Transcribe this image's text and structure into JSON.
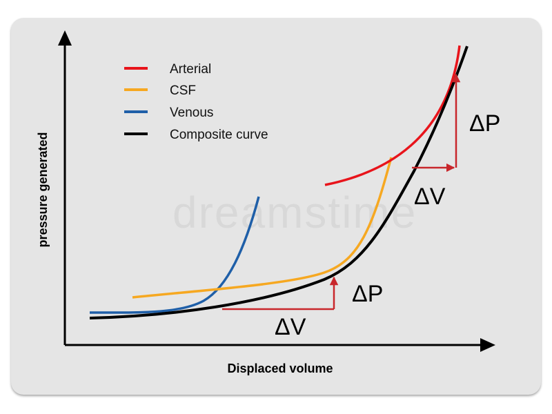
{
  "diagram": {
    "ylabel": "pressure generated",
    "xlabel": "Displaced volume",
    "watermark": "dreamstime",
    "legend": [
      {
        "label": "Arterial",
        "color": "#e8141b"
      },
      {
        "label": "CSF",
        "color": "#f6a821"
      },
      {
        "label": "Venous",
        "color": "#1f5fa8"
      },
      {
        "label": "Composite curve",
        "color": "#000000"
      }
    ],
    "annotations": {
      "delta_p": "ΔP",
      "delta_v": "ΔV"
    },
    "colors": {
      "annotation": "#c8262b",
      "panel": "#e5e5e5",
      "axis": "#000000"
    }
  }
}
